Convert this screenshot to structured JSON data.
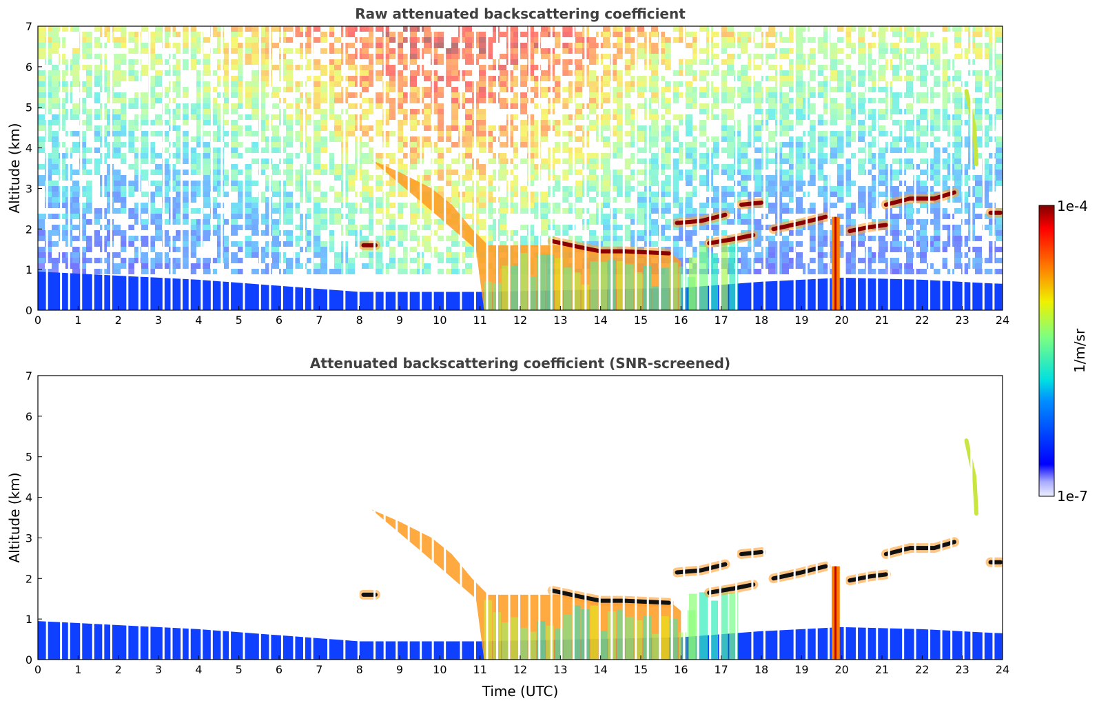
{
  "chart_data": [
    {
      "type": "heatmap",
      "title": "Raw attenuated backscattering coefficient",
      "xlabel": "",
      "ylabel": "Altitude (km)",
      "xlim": [
        0,
        24
      ],
      "ylim": [
        0,
        7
      ],
      "xticks": [
        "0",
        "1",
        "2",
        "3",
        "4",
        "5",
        "6",
        "7",
        "8",
        "9",
        "10",
        "11",
        "12",
        "13",
        "14",
        "15",
        "16",
        "17",
        "18",
        "19",
        "20",
        "21",
        "22",
        "23",
        "24"
      ],
      "yticks": [
        "0",
        "1",
        "2",
        "3",
        "4",
        "5",
        "6",
        "7"
      ],
      "noise_screened": false
    },
    {
      "type": "heatmap",
      "title": "Attenuated backscattering coefficient (SNR-screened)",
      "xlabel": "Time (UTC)",
      "ylabel": "Altitude (km)",
      "xlim": [
        0,
        24
      ],
      "ylim": [
        0,
        7
      ],
      "xticks": [
        "0",
        "1",
        "2",
        "3",
        "4",
        "5",
        "6",
        "7",
        "8",
        "9",
        "10",
        "11",
        "12",
        "13",
        "14",
        "15",
        "16",
        "17",
        "18",
        "19",
        "20",
        "21",
        "22",
        "23",
        "24"
      ],
      "yticks": [
        "0",
        "1",
        "2",
        "3",
        "4",
        "5",
        "6",
        "7"
      ],
      "noise_screened": true
    }
  ],
  "colorbar": {
    "label": "1/m/sr",
    "max_label": "1e-4",
    "min_label": "1e-7",
    "scale": "log",
    "colormap": "jet"
  },
  "features": {
    "boundary_layer_top": [
      [
        0,
        0.95
      ],
      [
        2,
        0.85
      ],
      [
        4,
        0.75
      ],
      [
        6,
        0.6
      ],
      [
        8,
        0.45
      ],
      [
        10,
        0.45
      ],
      [
        11,
        0.45
      ],
      [
        16,
        0.55
      ],
      [
        18,
        0.7
      ],
      [
        20,
        0.8
      ],
      [
        22,
        0.75
      ],
      [
        23.9,
        0.65
      ]
    ],
    "aerosol_layer_top": [
      [
        8.3,
        3.7
      ],
      [
        9,
        3.4
      ],
      [
        9.8,
        3.0
      ],
      [
        10.3,
        2.6
      ],
      [
        10.8,
        2.0
      ],
      [
        11.2,
        1.6
      ],
      [
        13,
        1.6
      ],
      [
        14,
        1.45
      ],
      [
        15,
        1.45
      ],
      [
        15.7,
        1.45
      ]
    ],
    "cloud_segments": [
      [
        [
          12.8,
          1.7
        ],
        [
          13.5,
          1.55
        ],
        [
          14,
          1.45
        ],
        [
          14.6,
          1.45
        ],
        [
          15.7,
          1.4
        ]
      ],
      [
        [
          15.9,
          2.15
        ],
        [
          16.5,
          2.2
        ],
        [
          17.1,
          2.35
        ]
      ],
      [
        [
          16.7,
          1.65
        ],
        [
          17.3,
          1.75
        ],
        [
          17.8,
          1.85
        ]
      ],
      [
        [
          17.5,
          2.6
        ],
        [
          18.0,
          2.65
        ]
      ],
      [
        [
          18.3,
          2.0
        ],
        [
          19.0,
          2.15
        ],
        [
          19.6,
          2.3
        ]
      ],
      [
        [
          20.2,
          1.95
        ],
        [
          20.7,
          2.05
        ],
        [
          21.1,
          2.1
        ]
      ],
      [
        [
          21.1,
          2.6
        ],
        [
          21.7,
          2.75
        ],
        [
          22.3,
          2.75
        ],
        [
          22.8,
          2.9
        ]
      ],
      [
        [
          23.7,
          2.4
        ],
        [
          23.95,
          2.4
        ]
      ],
      [
        [
          8.1,
          1.6
        ],
        [
          8.4,
          1.6
        ]
      ]
    ],
    "cirrus": [
      [
        23.1,
        5.4
      ],
      [
        23.3,
        4.5
      ],
      [
        23.35,
        3.6
      ]
    ],
    "precipitation_shaft": [
      [
        19.75,
        0.0
      ],
      [
        19.95,
        2.3
      ]
    ],
    "missing_profile_times": [
      0.2,
      0.55,
      0.75,
      1.05,
      1.35,
      1.6,
      1.8,
      2.2,
      2.5,
      2.75,
      3.1,
      3.3,
      3.55,
      3.75,
      4.05,
      4.3,
      4.55,
      4.75,
      5.1,
      5.5,
      5.75,
      6.05,
      6.35,
      6.6,
      6.8,
      7.2,
      7.6,
      7.95,
      8.35,
      8.6,
      8.9,
      9.2,
      9.5,
      9.8,
      10.1,
      10.5,
      10.85,
      11.15,
      11.4,
      11.7,
      11.95,
      12.2,
      12.45,
      12.75,
      13.0,
      13.3,
      13.6,
      13.95,
      14.25,
      14.55,
      14.85,
      15.15,
      15.45,
      15.75,
      16.05,
      16.4,
      16.7,
      16.95,
      17.35,
      17.75,
      18.05,
      18.4,
      18.8,
      19.1,
      19.35,
      19.65,
      20.05,
      20.35,
      20.6,
      20.85,
      21.15,
      21.5,
      21.8,
      22.15,
      22.45,
      22.7,
      23.0,
      23.2,
      23.5,
      23.75
    ]
  }
}
